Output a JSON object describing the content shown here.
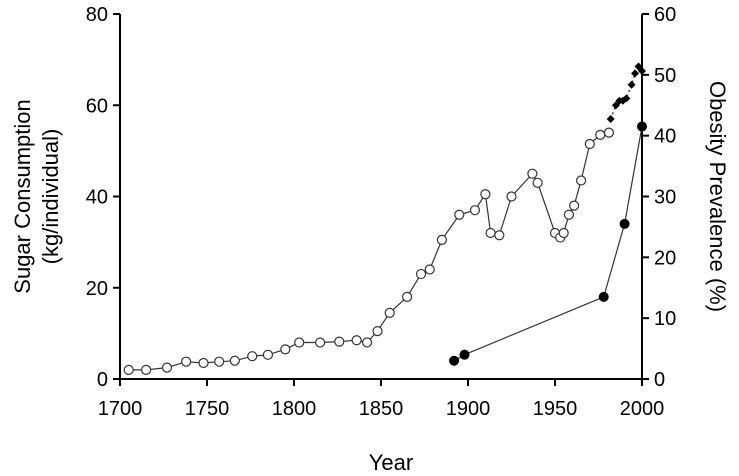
{
  "chart_data": {
    "type": "line",
    "xlabel": "Year",
    "ylabel_left": [
      "Sugar Consumption",
      "(kg/individual)"
    ],
    "ylabel_right": "Obesity Prevalence (%)",
    "xlim": [
      1700,
      2000
    ],
    "ylim_left": [
      0,
      80
    ],
    "ylim_right": [
      0,
      60
    ],
    "x_ticks": [
      "1700",
      "1750",
      "1800",
      "1850",
      "1900",
      "1950",
      "2000"
    ],
    "y_left_ticks": [
      "0",
      "20",
      "40",
      "60",
      "80"
    ],
    "y_right_ticks": [
      "0",
      "10",
      "20",
      "30",
      "40",
      "50",
      "60"
    ],
    "grid": false,
    "series": [
      {
        "axis": "left",
        "marker": "open-circle",
        "x": [
          1705,
          1715,
          1727,
          1738,
          1748,
          1757,
          1766,
          1776,
          1785,
          1795,
          1803,
          1815,
          1826,
          1836,
          1842,
          1848,
          1855,
          1865,
          1873,
          1878,
          1885,
          1895,
          1904,
          1910,
          1913,
          1918,
          1925,
          1937,
          1940,
          1950,
          1953,
          1955,
          1958,
          1961,
          1965,
          1970,
          1976,
          1981
        ],
        "y": [
          2,
          2,
          2.5,
          3.8,
          3.5,
          3.8,
          4,
          5,
          5.3,
          6.5,
          8,
          8,
          8.2,
          8.5,
          8,
          10.5,
          14.5,
          18,
          23,
          24,
          30.5,
          36,
          37,
          40.5,
          32,
          31.5,
          40,
          45,
          43,
          32,
          31,
          32,
          36,
          38,
          43.5,
          51.5,
          53.5,
          54
        ]
      },
      {
        "axis": "left",
        "marker": "filled-diamond",
        "x": [
          1982,
          1985,
          1987,
          1989,
          1991,
          1994,
          1996,
          1998,
          2000
        ],
        "y": [
          57,
          60,
          61,
          61,
          61.5,
          64.5,
          67,
          68.5,
          67.5
        ]
      },
      {
        "axis": "right",
        "marker": "filled-circle",
        "x": [
          1892,
          1898,
          1978,
          1990,
          2000
        ],
        "y": [
          3,
          4,
          13.5,
          25.5,
          41.5
        ]
      }
    ]
  }
}
